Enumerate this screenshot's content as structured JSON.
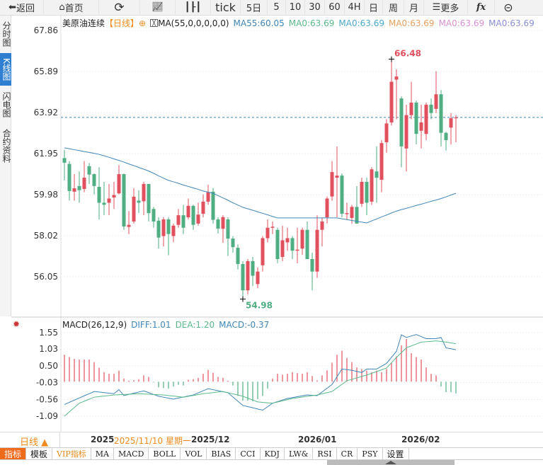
{
  "toolbar": {
    "back": "返回",
    "home": "首页",
    "tick": "tick",
    "d5": "5日",
    "m5": "5",
    "m10": "10",
    "m30": "30",
    "m60": "60",
    "h4": "4H",
    "day": "日",
    "week": "周",
    "month": "月",
    "more": "更多",
    "fx": "fx"
  },
  "sidebar": [
    {
      "label": "分时图"
    },
    {
      "label": "K线图",
      "active": true
    },
    {
      "label": "闪电图"
    },
    {
      "label": "合约资料"
    }
  ],
  "legend": {
    "name": "美原油连续",
    "period": "【日线】",
    "ma_formula": "MA(55,0,0,0,0,0)",
    "ma55": "MA55:60.05",
    "ma0a": "MA0:63.69",
    "ma0b": "MA0:63.69",
    "ma0c": "MA0:63.69",
    "ma0d": "MA0:63.69",
    "ma0e": "MA0:63.69"
  },
  "macd_legend": {
    "title": "MACD(26,12,9)",
    "diff": "DIFF:1.01",
    "dea": "DEA:1.20",
    "macd": "MACD:-0.37"
  },
  "date_axis": {
    "period": "日线 ▲",
    "labels": [
      "2025/",
      "2025/12",
      "2026/01",
      "2026/02"
    ],
    "crosshair": "2025/11/10 星期一"
  },
  "bottom_tabs": [
    "指标",
    "模板",
    "VIP指标",
    "MA",
    "MACD",
    "BOLL",
    "VOL",
    "BIAS",
    "CCI",
    "KDJ",
    "LW&",
    "RSI",
    "CR",
    "PSY",
    "设置"
  ],
  "colors": {
    "up": "#e0505e",
    "down": "#4fae82",
    "ma55": "#3f86b8",
    "diff": "#3f86b8",
    "dea": "#5bb98a",
    "accent": "#f08a1c"
  },
  "chart_data": [
    {
      "type": "candlestick",
      "title": "美原油连续",
      "y_ticks": [
        "67.86",
        "65.89",
        "63.92",
        "61.95",
        "59.98",
        "58.02",
        "56.05"
      ],
      "ylim": [
        54.4,
        68.3
      ],
      "last_price": 63.69,
      "max_label": "66.48",
      "min_label": "54.98",
      "ohlc": [
        [
          61.74,
          62.13,
          60.67,
          61.52
        ],
        [
          61.46,
          61.6,
          59.7,
          60.16
        ],
        [
          60.13,
          60.97,
          59.7,
          60.29
        ],
        [
          60.4,
          61.1,
          59.6,
          60.2
        ],
        [
          60.26,
          61.6,
          60.1,
          60.8
        ],
        [
          61.35,
          61.5,
          60.5,
          60.95
        ],
        [
          60.97,
          61.0,
          60.0,
          60.4
        ],
        [
          60.36,
          61.3,
          58.8,
          59.6
        ],
        [
          59.6,
          60.6,
          59.0,
          59.5
        ],
        [
          59.6,
          60.5,
          59.0,
          59.8
        ],
        [
          59.85,
          60.6,
          59.3,
          59.97
        ],
        [
          60.05,
          61.4,
          60.0,
          60.97
        ],
        [
          60.97,
          61.0,
          58.3,
          58.46
        ],
        [
          58.44,
          59.2,
          58.1,
          58.54
        ],
        [
          58.7,
          60.3,
          58.6,
          59.89
        ],
        [
          59.7,
          60.2,
          59.1,
          59.6
        ],
        [
          59.67,
          60.6,
          59.0,
          60.5
        ],
        [
          60.5,
          60.5,
          58.7,
          59.1
        ],
        [
          59.3,
          59.4,
          58.4,
          58.7
        ],
        [
          58.74,
          58.9,
          57.4,
          57.93
        ],
        [
          58.0,
          58.9,
          57.5,
          58.8
        ],
        [
          58.8,
          58.9,
          57.08,
          58.1
        ],
        [
          58.0,
          58.6,
          57.7,
          58.5
        ],
        [
          58.54,
          59.3,
          58.4,
          59.0
        ],
        [
          59.0,
          59.5,
          58.1,
          58.4
        ],
        [
          58.9,
          59.8,
          58.8,
          59.45
        ],
        [
          59.45,
          59.5,
          58.3,
          58.54
        ],
        [
          58.6,
          59.6,
          58.5,
          59.03
        ],
        [
          59.07,
          60.0,
          58.9,
          59.65
        ],
        [
          59.65,
          60.46,
          59.5,
          60.1
        ],
        [
          60.13,
          60.3,
          58.6,
          58.78
        ],
        [
          58.8,
          58.9,
          58.12,
          58.36
        ],
        [
          58.35,
          59.0,
          57.68,
          58.91
        ],
        [
          58.8,
          58.9,
          57.05,
          57.88
        ],
        [
          57.88,
          58.0,
          57.2,
          57.47
        ],
        [
          57.44,
          57.6,
          56.4,
          56.66
        ],
        [
          56.66,
          56.8,
          54.98,
          55.4
        ],
        [
          55.4,
          56.9,
          55.2,
          56.8
        ],
        [
          56.8,
          57.0,
          55.6,
          56.1
        ],
        [
          55.7,
          56.5,
          55.5,
          56.3
        ],
        [
          56.6,
          58.0,
          56.3,
          57.9
        ],
        [
          57.9,
          58.8,
          57.7,
          58.4
        ],
        [
          58.4,
          58.7,
          58.1,
          58.45
        ],
        [
          58.3,
          58.4,
          56.7,
          56.9
        ],
        [
          57.0,
          58.5,
          56.8,
          57.8
        ],
        [
          57.7,
          58.4,
          57.3,
          57.9
        ],
        [
          57.9,
          58.0,
          56.9,
          57.3
        ],
        [
          57.3,
          58.4,
          56.7,
          57.35
        ],
        [
          57.4,
          58.4,
          57.1,
          58.3
        ],
        [
          58.3,
          58.7,
          56.9,
          56.9
        ],
        [
          56.9,
          57.2,
          55.4,
          56.3
        ],
        [
          56.3,
          59.0,
          56.0,
          58.3
        ],
        [
          58.3,
          58.9,
          57.5,
          58.7
        ],
        [
          58.9,
          59.9,
          58.6,
          59.8
        ],
        [
          59.9,
          61.6,
          59.7,
          61.07
        ],
        [
          60.8,
          62.3,
          58.9,
          60.9
        ],
        [
          60.9,
          61.0,
          58.9,
          59.07
        ],
        [
          59.05,
          59.6,
          58.8,
          59.1
        ],
        [
          58.87,
          59.5,
          58.6,
          59.4
        ],
        [
          59.4,
          60.4,
          58.6,
          58.6
        ],
        [
          59.55,
          60.8,
          59.4,
          60.6
        ],
        [
          60.6,
          60.8,
          59.0,
          59.6
        ],
        [
          59.65,
          61.3,
          59.5,
          61.2
        ],
        [
          61.1,
          62.3,
          59.6,
          60.8
        ],
        [
          60.7,
          62.6,
          60.1,
          62.46
        ],
        [
          62.5,
          63.6,
          62.0,
          63.4
        ],
        [
          63.45,
          66.48,
          63.3,
          65.4
        ],
        [
          65.5,
          66.0,
          63.6,
          65.65
        ],
        [
          64.6,
          64.7,
          61.3,
          62.3
        ],
        [
          62.2,
          64.3,
          61.1,
          63.8
        ],
        [
          63.8,
          65.4,
          63.6,
          64.4
        ],
        [
          64.4,
          64.5,
          62.4,
          62.9
        ],
        [
          63.05,
          64.3,
          62.2,
          63.45
        ],
        [
          62.9,
          64.4,
          62.6,
          64.3
        ],
        [
          64.3,
          64.6,
          63.6,
          63.9
        ],
        [
          64.1,
          65.9,
          63.9,
          64.8
        ],
        [
          64.8,
          65.0,
          62.3,
          62.95
        ],
        [
          62.95,
          63.0,
          62.1,
          62.6
        ],
        [
          63.2,
          63.9,
          62.4,
          63.65
        ],
        [
          63.69,
          63.8,
          62.5,
          63.69
        ]
      ],
      "ma55": [
        62.23,
        62.19,
        62.14,
        62.1,
        62.05,
        62.01,
        61.97,
        61.92,
        61.85,
        61.78,
        61.7,
        61.63,
        61.55,
        61.46,
        61.38,
        61.29,
        61.21,
        61.12,
        61.01,
        60.89,
        60.78,
        60.67,
        60.6,
        60.53,
        60.45,
        60.38,
        60.31,
        60.24,
        60.16,
        60.11,
        60.05,
        59.94,
        59.83,
        59.72,
        59.6,
        59.49,
        59.38,
        59.31,
        59.24,
        59.16,
        59.09,
        59.02,
        58.94,
        58.87,
        58.87,
        58.87,
        58.87,
        58.87,
        58.87,
        58.87,
        58.87,
        58.87,
        58.87,
        58.87,
        58.87,
        58.87,
        58.83,
        58.79,
        58.75,
        58.71,
        58.67,
        58.63,
        58.73,
        58.82,
        58.92,
        59.01,
        59.11,
        59.2,
        59.27,
        59.33,
        59.4,
        59.47,
        59.53,
        59.6,
        59.67,
        59.73,
        59.8,
        59.88,
        59.97,
        60.05
      ]
    },
    {
      "type": "macd",
      "y_ticks": [
        "1.55",
        "1.03",
        "0.50",
        "-0.03",
        "-0.56",
        "-1.09"
      ],
      "ylim": [
        -1.09,
        1.55
      ],
      "histogram": [
        0.85,
        0.78,
        0.72,
        0.7,
        0.7,
        0.7,
        0.62,
        0.44,
        0.3,
        0.25,
        0.25,
        0.35,
        0.1,
        0.03,
        0.05,
        0.08,
        0.2,
        0.15,
        -0.02,
        -0.18,
        -0.2,
        -0.22,
        -0.15,
        -0.1,
        -0.12,
        0.06,
        0.08,
        0.12,
        0.25,
        0.37,
        0.28,
        0.15,
        0.12,
        0.03,
        -0.12,
        -0.45,
        -0.6,
        -0.6,
        -0.62,
        -0.55,
        -0.45,
        -0.22,
        0.1,
        0.25,
        0.22,
        0.25,
        0.3,
        0.27,
        0.25,
        0.3,
        0.18,
        0.04,
        0.2,
        0.36,
        0.6,
        0.85,
        0.98,
        0.75,
        0.62,
        0.45,
        0.4,
        0.35,
        0.3,
        0.35,
        0.3,
        0.4,
        0.6,
        0.8,
        1.15,
        1.35,
        0.9,
        0.78,
        0.7,
        0.45,
        0.25,
        0.2,
        -0.15,
        -0.33,
        -0.33,
        -0.37
      ],
      "diff": [
        [
          0,
          -0.72
        ],
        [
          6,
          -0.31
        ],
        [
          10,
          -0.38
        ],
        [
          11,
          -0.25
        ],
        [
          12,
          -0.44
        ],
        [
          16,
          -0.29
        ],
        [
          19,
          -0.46
        ],
        [
          22,
          -0.55
        ],
        [
          26,
          -0.42
        ],
        [
          29,
          -0.22
        ],
        [
          33,
          -0.35
        ],
        [
          36,
          -0.75
        ],
        [
          40,
          -0.9
        ],
        [
          42,
          -0.68
        ],
        [
          45,
          -0.53
        ],
        [
          49,
          -0.42
        ],
        [
          51,
          -0.44
        ],
        [
          54,
          -0.09
        ],
        [
          56,
          0.4
        ],
        [
          58,
          0.36
        ],
        [
          60,
          0.29
        ],
        [
          61,
          0.4
        ],
        [
          63,
          0.4
        ],
        [
          65,
          0.58
        ],
        [
          67,
          0.96
        ],
        [
          68,
          1.48
        ],
        [
          69,
          1.4
        ],
        [
          71,
          1.49
        ],
        [
          73,
          1.36
        ],
        [
          75,
          1.36
        ],
        [
          76,
          1.4
        ],
        [
          77,
          1.07
        ],
        [
          79,
          1.01
        ]
      ],
      "dea": [
        [
          0,
          -1.09
        ],
        [
          3,
          -0.68
        ],
        [
          6,
          -0.49
        ],
        [
          10,
          -0.42
        ],
        [
          15,
          -0.38
        ],
        [
          20,
          -0.42
        ],
        [
          24,
          -0.49
        ],
        [
          28,
          -0.38
        ],
        [
          32,
          -0.31
        ],
        [
          36,
          -0.46
        ],
        [
          39,
          -0.64
        ],
        [
          42,
          -0.68
        ],
        [
          46,
          -0.53
        ],
        [
          51,
          -0.42
        ],
        [
          54,
          -0.31
        ],
        [
          57,
          0.03
        ],
        [
          61,
          0.21
        ],
        [
          65,
          0.43
        ],
        [
          67,
          0.77
        ],
        [
          69,
          1.07
        ],
        [
          72,
          1.25
        ],
        [
          75,
          1.29
        ],
        [
          77,
          1.25
        ],
        [
          79,
          1.2
        ]
      ]
    }
  ]
}
